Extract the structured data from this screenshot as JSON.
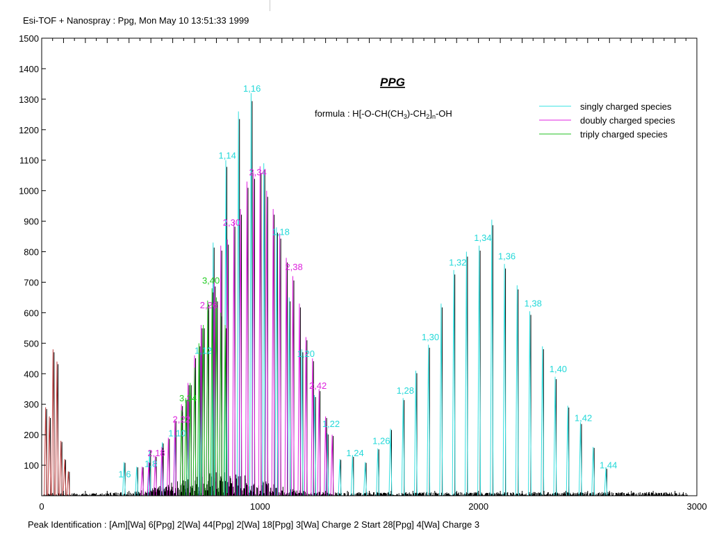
{
  "header": {
    "title": "Esi-TOF + Nanospray : Ppg, Mon May 10 13:51:33 1999"
  },
  "footer": {
    "text": "Peak Identification :     [Am][Wa]    6[Ppg] 2[Wa]    44[Ppg] 2[Wa]        18[Ppg] 3[Wa] Charge 2    Start 28[Ppg] 4[Wa] Charge 3"
  },
  "chart_data": {
    "type": "line",
    "title": "PPG",
    "formula": {
      "prefix": "formula  :  H[-O-CH(CH",
      "sub1": "3",
      "mid": ")-CH",
      "sub2": "2",
      "mid2": "]",
      "sub3": "n",
      "suffix": "-OH"
    },
    "xlim": [
      0,
      3000
    ],
    "ylim": [
      0,
      1500
    ],
    "x_ticks": [
      0,
      1000,
      2000,
      3000
    ],
    "y_ticks": [
      100,
      200,
      300,
      400,
      500,
      600,
      700,
      800,
      900,
      1000,
      1100,
      1200,
      1300,
      1400,
      1500
    ],
    "legend": {
      "placement": "top-right",
      "entries": [
        {
          "name": "singly charged species",
          "color": "#33e0e0"
        },
        {
          "name": "doubly charged species",
          "color": "#e020e0"
        },
        {
          "name": "triply charged species",
          "color": "#20c020"
        }
      ]
    },
    "colors": {
      "single": "#33e0e0",
      "double": "#e020e0",
      "triple": "#20c020",
      "raw": "#000000",
      "low": "#c04040",
      "single_label": "#22d8d8",
      "double_label": "#dd22dd",
      "triple_label": "#22cc22"
    },
    "series": [
      {
        "name": "singly charged species",
        "peaks": [
          {
            "x": 377,
            "y": 110
          },
          {
            "x": 435,
            "y": 95
          },
          {
            "x": 494,
            "y": 150
          },
          {
            "x": 552,
            "y": 175
          },
          {
            "x": 610,
            "y": 195
          },
          {
            "x": 668,
            "y": 240
          },
          {
            "x": 726,
            "y": 470
          },
          {
            "x": 785,
            "y": 830
          },
          {
            "x": 843,
            "y": 1100
          },
          {
            "x": 901,
            "y": 1260
          },
          {
            "x": 959,
            "y": 1320
          },
          {
            "x": 1017,
            "y": 1090
          },
          {
            "x": 1075,
            "y": 880
          },
          {
            "x": 1133,
            "y": 650
          },
          {
            "x": 1191,
            "y": 480
          },
          {
            "x": 1249,
            "y": 330
          },
          {
            "x": 1307,
            "y": 205
          },
          {
            "x": 1365,
            "y": 120
          },
          {
            "x": 1423,
            "y": 130
          },
          {
            "x": 1481,
            "y": 110
          },
          {
            "x": 1539,
            "y": 155
          },
          {
            "x": 1597,
            "y": 220
          },
          {
            "x": 1655,
            "y": 320
          },
          {
            "x": 1713,
            "y": 410
          },
          {
            "x": 1771,
            "y": 495
          },
          {
            "x": 1829,
            "y": 630
          },
          {
            "x": 1887,
            "y": 740
          },
          {
            "x": 1945,
            "y": 800
          },
          {
            "x": 2003,
            "y": 820
          },
          {
            "x": 2061,
            "y": 905
          },
          {
            "x": 2119,
            "y": 760
          },
          {
            "x": 2177,
            "y": 690
          },
          {
            "x": 2235,
            "y": 605
          },
          {
            "x": 2293,
            "y": 490
          },
          {
            "x": 2351,
            "y": 390
          },
          {
            "x": 2409,
            "y": 295
          },
          {
            "x": 2467,
            "y": 240
          },
          {
            "x": 2525,
            "y": 160
          },
          {
            "x": 2583,
            "y": 90
          }
        ]
      },
      {
        "name": "doubly charged species",
        "peaks": [
          {
            "x": 460,
            "y": 95
          },
          {
            "x": 490,
            "y": 110
          },
          {
            "x": 520,
            "y": 130
          },
          {
            "x": 550,
            "y": 160
          },
          {
            "x": 580,
            "y": 190
          },
          {
            "x": 610,
            "y": 250
          },
          {
            "x": 640,
            "y": 300
          },
          {
            "x": 670,
            "y": 370
          },
          {
            "x": 700,
            "y": 460
          },
          {
            "x": 730,
            "y": 560
          },
          {
            "x": 760,
            "y": 620
          },
          {
            "x": 790,
            "y": 700
          },
          {
            "x": 820,
            "y": 820
          },
          {
            "x": 850,
            "y": 840
          },
          {
            "x": 880,
            "y": 900
          },
          {
            "x": 910,
            "y": 940
          },
          {
            "x": 940,
            "y": 1030
          },
          {
            "x": 970,
            "y": 1060
          },
          {
            "x": 1000,
            "y": 1080
          },
          {
            "x": 1030,
            "y": 1000
          },
          {
            "x": 1060,
            "y": 940
          },
          {
            "x": 1090,
            "y": 860
          },
          {
            "x": 1120,
            "y": 780
          },
          {
            "x": 1150,
            "y": 720
          },
          {
            "x": 1180,
            "y": 630
          },
          {
            "x": 1210,
            "y": 520
          },
          {
            "x": 1240,
            "y": 450
          },
          {
            "x": 1270,
            "y": 350
          },
          {
            "x": 1300,
            "y": 260
          },
          {
            "x": 1330,
            "y": 200
          }
        ]
      },
      {
        "name": "triply charged species",
        "peaks": [
          {
            "x": 640,
            "y": 280
          },
          {
            "x": 660,
            "y": 320
          },
          {
            "x": 680,
            "y": 370
          },
          {
            "x": 700,
            "y": 420
          },
          {
            "x": 720,
            "y": 500
          },
          {
            "x": 740,
            "y": 560
          },
          {
            "x": 760,
            "y": 640
          },
          {
            "x": 780,
            "y": 680
          },
          {
            "x": 800,
            "y": 650
          },
          {
            "x": 820,
            "y": 600
          },
          {
            "x": 840,
            "y": 560
          }
        ]
      },
      {
        "name": "",
        "peaks": [
          {
            "x": 18,
            "y": 290
          },
          {
            "x": 35,
            "y": 260
          },
          {
            "x": 52,
            "y": 480
          },
          {
            "x": 70,
            "y": 440
          },
          {
            "x": 88,
            "y": 180
          },
          {
            "x": 105,
            "y": 120
          },
          {
            "x": 122,
            "y": 80
          }
        ]
      }
    ],
    "annotations": [
      {
        "text": "1,6",
        "x": 380,
        "y": 60,
        "series": "single"
      },
      {
        "text": "1,8",
        "x": 500,
        "y": 95,
        "series": "single"
      },
      {
        "text": "2,18",
        "x": 525,
        "y": 130,
        "series": "double"
      },
      {
        "text": "1,10",
        "x": 620,
        "y": 195,
        "series": "single"
      },
      {
        "text": "2,22",
        "x": 640,
        "y": 240,
        "series": "double"
      },
      {
        "text": "3,34",
        "x": 670,
        "y": 310,
        "series": "triple"
      },
      {
        "text": "1,12",
        "x": 740,
        "y": 465,
        "series": "single"
      },
      {
        "text": "2,26",
        "x": 765,
        "y": 615,
        "series": "double"
      },
      {
        "text": "3,40",
        "x": 775,
        "y": 695,
        "series": "triple"
      },
      {
        "text": "2,30",
        "x": 870,
        "y": 885,
        "series": "double"
      },
      {
        "text": "1,14",
        "x": 850,
        "y": 1105,
        "series": "single"
      },
      {
        "text": "1,16",
        "x": 963,
        "y": 1325,
        "series": "single"
      },
      {
        "text": "2,34",
        "x": 990,
        "y": 1050,
        "series": "double"
      },
      {
        "text": "1,18",
        "x": 1095,
        "y": 855,
        "series": "single"
      },
      {
        "text": "2,38",
        "x": 1155,
        "y": 740,
        "series": "double"
      },
      {
        "text": "1,20",
        "x": 1210,
        "y": 455,
        "series": "single"
      },
      {
        "text": "2,42",
        "x": 1265,
        "y": 350,
        "series": "double"
      },
      {
        "text": "1,22",
        "x": 1325,
        "y": 225,
        "series": "single"
      },
      {
        "text": "1,24",
        "x": 1435,
        "y": 130,
        "series": "single"
      },
      {
        "text": "1,26",
        "x": 1555,
        "y": 170,
        "series": "single"
      },
      {
        "text": "1,28",
        "x": 1665,
        "y": 335,
        "series": "single"
      },
      {
        "text": "1,30",
        "x": 1780,
        "y": 510,
        "series": "single"
      },
      {
        "text": "1,32",
        "x": 1905,
        "y": 755,
        "series": "single"
      },
      {
        "text": "1,34",
        "x": 2020,
        "y": 835,
        "series": "single"
      },
      {
        "text": "1,36",
        "x": 2130,
        "y": 775,
        "series": "single"
      },
      {
        "text": "1,38",
        "x": 2250,
        "y": 620,
        "series": "single"
      },
      {
        "text": "1,40",
        "x": 2365,
        "y": 405,
        "series": "single"
      },
      {
        "text": "1,42",
        "x": 2480,
        "y": 245,
        "series": "single"
      },
      {
        "text": "1,44",
        "x": 2595,
        "y": 90,
        "series": "single"
      }
    ]
  }
}
